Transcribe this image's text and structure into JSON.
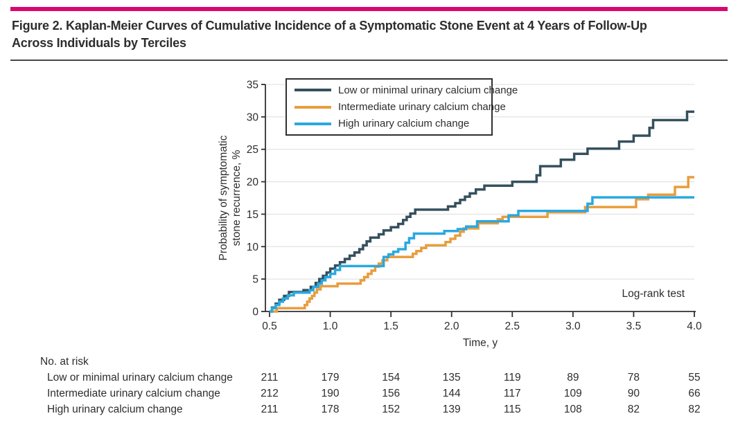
{
  "header": {
    "title_line1": "Figure 2. Kaplan-Meier Curves of Cumulative Incidence of a Symptomatic Stone Event at 4 Years of Follow-Up",
    "title_line2": "Across Individuals by Terciles",
    "accent_color": "#d9066d"
  },
  "colors": {
    "axis": "#2f2f2f",
    "grid": "#dcdcdc",
    "text": "#2d2d2d"
  },
  "chart_data": {
    "type": "line",
    "subtype": "kaplan-meier-step",
    "title": "",
    "xlabel": "Time, y",
    "ylabel_line1": "Probability of symptomatic",
    "ylabel_line2": "stone recurrence, %",
    "xlim": [
      0.5,
      4.0
    ],
    "ylim": [
      0,
      35
    ],
    "grid": true,
    "legend_position": "top-left-inside",
    "annotation": "Log-rank test",
    "x_ticks": [
      "0.5",
      "1.0",
      "1.5",
      "2.0",
      "2.5",
      "3.0",
      "3.5",
      "4.0"
    ],
    "x_tick_values": [
      0.5,
      1.0,
      1.5,
      2.0,
      2.5,
      3.0,
      3.5,
      4.0
    ],
    "y_ticks": [
      "0",
      "5",
      "10",
      "15",
      "20",
      "25",
      "30",
      "35"
    ],
    "y_tick_values": [
      0,
      5,
      10,
      15,
      20,
      25,
      30,
      35
    ],
    "series": [
      {
        "name": "Low or minimal urinary calcium change",
        "color": "#35505d",
        "points": [
          [
            0.5,
            0
          ],
          [
            0.52,
            0.6
          ],
          [
            0.55,
            1.2
          ],
          [
            0.58,
            1.8
          ],
          [
            0.62,
            2.4
          ],
          [
            0.66,
            3.0
          ],
          [
            0.78,
            3.3
          ],
          [
            0.84,
            3.8
          ],
          [
            0.88,
            4.4
          ],
          [
            0.91,
            5.0
          ],
          [
            0.94,
            5.5
          ],
          [
            0.97,
            6.0
          ],
          [
            1.0,
            6.6
          ],
          [
            1.04,
            7.1
          ],
          [
            1.08,
            7.6
          ],
          [
            1.12,
            8.1
          ],
          [
            1.16,
            8.6
          ],
          [
            1.2,
            9.1
          ],
          [
            1.24,
            9.6
          ],
          [
            1.27,
            10.2
          ],
          [
            1.3,
            10.8
          ],
          [
            1.33,
            11.4
          ],
          [
            1.4,
            11.9
          ],
          [
            1.44,
            12.5
          ],
          [
            1.5,
            13.0
          ],
          [
            1.56,
            13.5
          ],
          [
            1.6,
            14.1
          ],
          [
            1.63,
            14.6
          ],
          [
            1.66,
            15.1
          ],
          [
            1.7,
            15.7
          ],
          [
            1.97,
            16.2
          ],
          [
            2.03,
            16.7
          ],
          [
            2.07,
            17.2
          ],
          [
            2.11,
            17.7
          ],
          [
            2.15,
            18.2
          ],
          [
            2.2,
            18.8
          ],
          [
            2.27,
            19.4
          ],
          [
            2.5,
            20.0
          ],
          [
            2.7,
            21.0
          ],
          [
            2.73,
            22.4
          ],
          [
            2.9,
            23.4
          ],
          [
            3.01,
            24.3
          ],
          [
            3.12,
            25.1
          ],
          [
            3.38,
            26.2
          ],
          [
            3.5,
            27.1
          ],
          [
            3.63,
            28.3
          ],
          [
            3.66,
            29.5
          ],
          [
            3.94,
            30.8
          ]
        ]
      },
      {
        "name": "Intermediate urinary calcium change",
        "color": "#e89d3d",
        "points": [
          [
            0.5,
            0
          ],
          [
            0.56,
            0.5
          ],
          [
            0.79,
            1.0
          ],
          [
            0.81,
            1.5
          ],
          [
            0.83,
            2.0
          ],
          [
            0.85,
            2.4
          ],
          [
            0.87,
            2.9
          ],
          [
            0.89,
            3.4
          ],
          [
            0.92,
            3.9
          ],
          [
            1.06,
            4.3
          ],
          [
            1.25,
            4.8
          ],
          [
            1.28,
            5.3
          ],
          [
            1.31,
            5.8
          ],
          [
            1.34,
            6.3
          ],
          [
            1.37,
            6.9
          ],
          [
            1.4,
            7.4
          ],
          [
            1.43,
            7.9
          ],
          [
            1.47,
            8.4
          ],
          [
            1.68,
            8.9
          ],
          [
            1.71,
            9.3
          ],
          [
            1.75,
            9.8
          ],
          [
            1.79,
            10.2
          ],
          [
            1.95,
            10.7
          ],
          [
            1.99,
            11.2
          ],
          [
            2.03,
            11.7
          ],
          [
            2.07,
            12.3
          ],
          [
            2.1,
            12.8
          ],
          [
            2.22,
            13.6
          ],
          [
            2.38,
            14.2
          ],
          [
            2.42,
            14.6
          ],
          [
            2.79,
            15.3
          ],
          [
            3.1,
            16.1
          ],
          [
            3.52,
            17.3
          ],
          [
            3.62,
            18.0
          ],
          [
            3.84,
            19.2
          ],
          [
            3.95,
            20.7
          ]
        ]
      },
      {
        "name": "High urinary calcium change",
        "color": "#29a8e0",
        "points": [
          [
            0.5,
            0
          ],
          [
            0.52,
            0.5
          ],
          [
            0.55,
            1.0
          ],
          [
            0.58,
            1.5
          ],
          [
            0.61,
            2.0
          ],
          [
            0.65,
            2.5
          ],
          [
            0.7,
            2.9
          ],
          [
            0.83,
            3.3
          ],
          [
            0.86,
            3.8
          ],
          [
            0.9,
            4.3
          ],
          [
            0.93,
            4.8
          ],
          [
            0.96,
            5.3
          ],
          [
            1.0,
            5.8
          ],
          [
            1.04,
            6.4
          ],
          [
            1.08,
            7.0
          ],
          [
            1.44,
            8.4
          ],
          [
            1.48,
            8.8
          ],
          [
            1.52,
            9.2
          ],
          [
            1.56,
            9.6
          ],
          [
            1.62,
            10.6
          ],
          [
            1.65,
            11.3
          ],
          [
            1.69,
            12.0
          ],
          [
            1.94,
            12.4
          ],
          [
            2.05,
            12.7
          ],
          [
            2.12,
            13.1
          ],
          [
            2.21,
            13.9
          ],
          [
            2.47,
            14.8
          ],
          [
            2.55,
            15.5
          ],
          [
            3.12,
            16.6
          ],
          [
            3.16,
            17.6
          ]
        ]
      }
    ]
  },
  "risk_table": {
    "header": "No. at risk",
    "rows": [
      {
        "label": "Low or minimal urinary calcium change",
        "values": [
          211,
          179,
          154,
          135,
          119,
          89,
          78,
          55
        ]
      },
      {
        "label": "Intermediate urinary calcium change",
        "values": [
          212,
          190,
          156,
          144,
          117,
          109,
          90,
          66
        ]
      },
      {
        "label": "High urinary calcium change",
        "values": [
          211,
          178,
          152,
          139,
          115,
          108,
          82,
          82
        ]
      }
    ]
  }
}
